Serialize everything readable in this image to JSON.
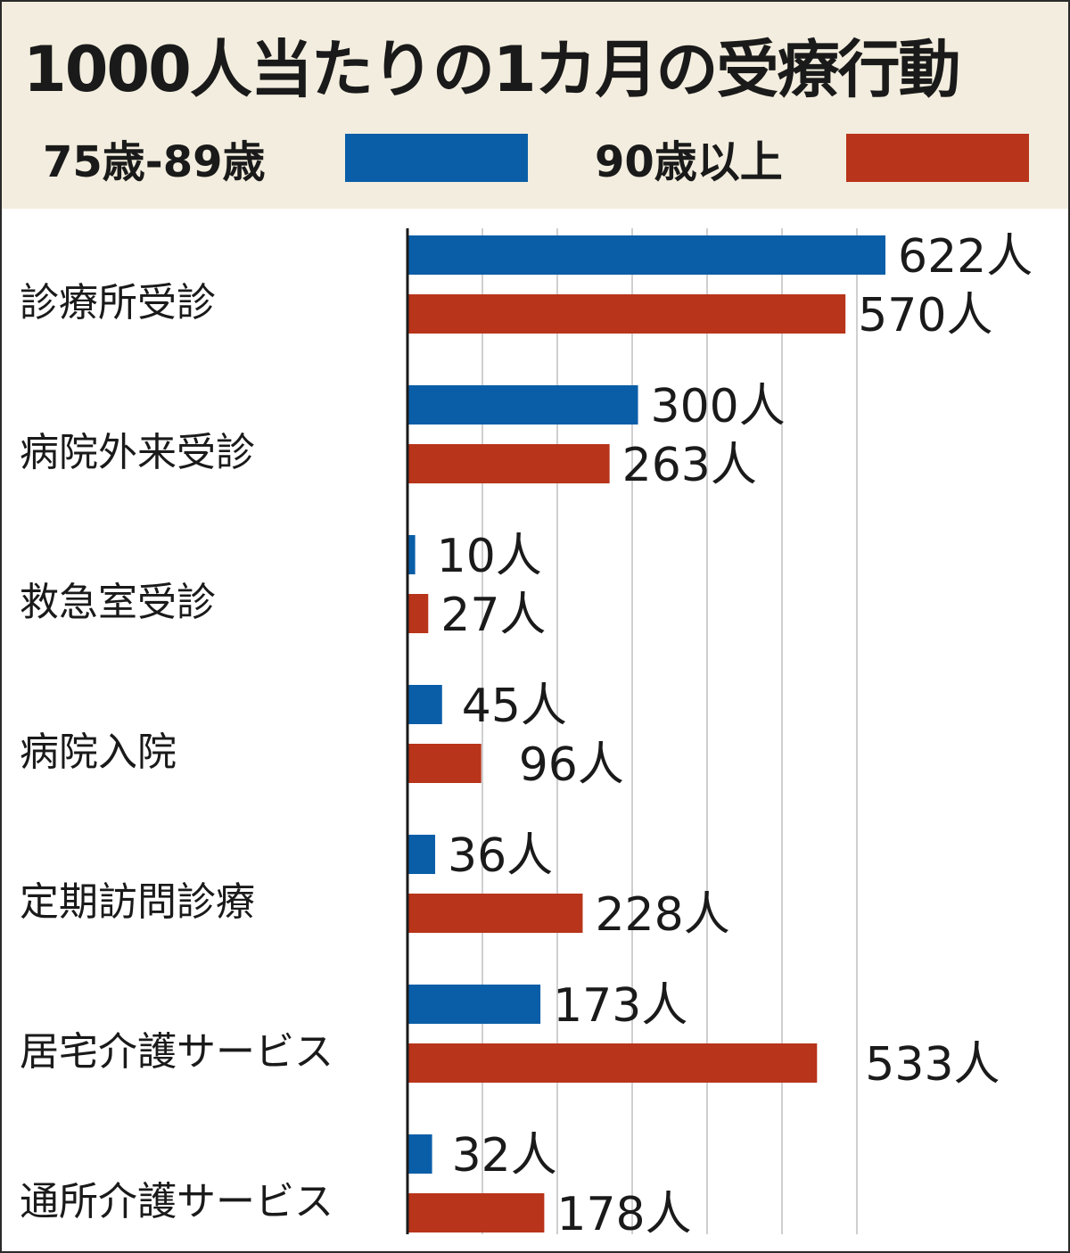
{
  "chart_data": {
    "type": "bar",
    "orientation": "horizontal",
    "title": "1000人当たりの1カ月の受療行動",
    "categories": [
      "診療所受診",
      "病院外来受診",
      "救急室受診",
      "病院入院",
      "定期訪問診療",
      "居宅介護サービス",
      "通所介護サービス"
    ],
    "series": [
      {
        "name": "75歳-89歳",
        "color": "#0a5ea8",
        "values": [
          622,
          300,
          10,
          45,
          36,
          173,
          32
        ]
      },
      {
        "name": "90歳以上",
        "color": "#b8341a",
        "values": [
          570,
          263,
          27,
          96,
          228,
          533,
          178
        ]
      }
    ],
    "value_unit": "人",
    "xlim": [
      0,
      700
    ],
    "grid": true,
    "legend_position": "top"
  }
}
